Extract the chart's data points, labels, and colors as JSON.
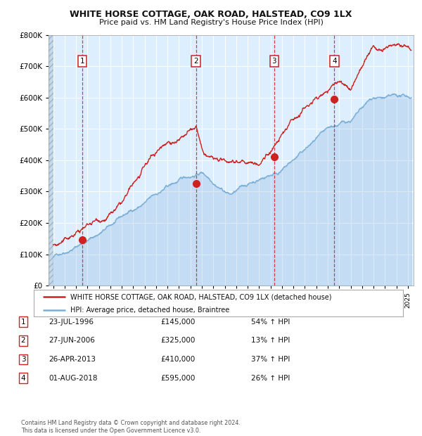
{
  "title1": "WHITE HORSE COTTAGE, OAK ROAD, HALSTEAD, CO9 1LX",
  "title2": "Price paid vs. HM Land Registry's House Price Index (HPI)",
  "transactions": [
    {
      "num": 1,
      "date": "23-JUL-1996",
      "price": 145000,
      "pct": "54% ↑ HPI",
      "x_year": 1996.55
    },
    {
      "num": 2,
      "date": "27-JUN-2006",
      "price": 325000,
      "pct": "13% ↑ HPI",
      "x_year": 2006.49
    },
    {
      "num": 3,
      "date": "26-APR-2013",
      "price": 410000,
      "pct": "37% ↑ HPI",
      "x_year": 2013.32
    },
    {
      "num": 4,
      "date": "01-AUG-2018",
      "price": 595000,
      "pct": "26% ↑ HPI",
      "x_year": 2018.58
    }
  ],
  "hpi_color": "#7aaed6",
  "price_color": "#cc2222",
  "background_color": "#ddeeff",
  "grid_color": "#ffffff",
  "footnote": "Contains HM Land Registry data © Crown copyright and database right 2024.\nThis data is licensed under the Open Government Licence v3.0.",
  "legend_label_price": "WHITE HORSE COTTAGE, OAK ROAD, HALSTEAD, CO9 1LX (detached house)",
  "legend_label_hpi": "HPI: Average price, detached house, Braintree",
  "ylim": [
    0,
    800000
  ],
  "yticks": [
    0,
    100000,
    200000,
    300000,
    400000,
    500000,
    600000,
    700000,
    800000
  ],
  "xlim_start": 1993.6,
  "xlim_end": 2025.5
}
